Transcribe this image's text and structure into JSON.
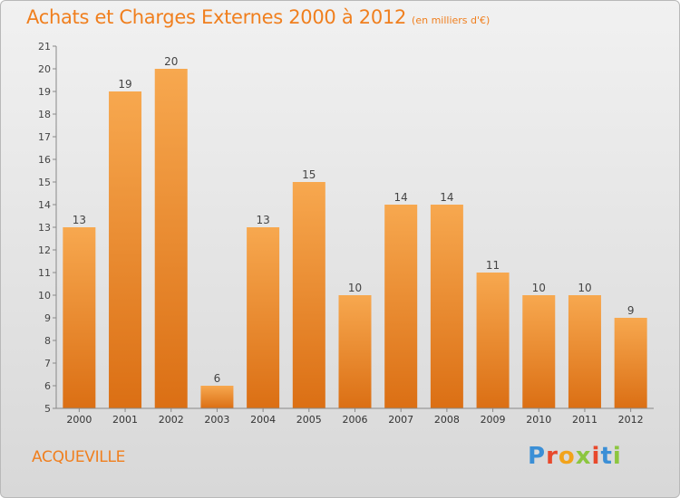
{
  "header": {
    "title": "Achats et Charges Externes 2000 à 2012",
    "subtitle": "(en milliers d'€)"
  },
  "commune": "ACQUEVILLE",
  "logo": {
    "letters": [
      "P",
      "r",
      "o",
      "x",
      "i",
      "t",
      "i"
    ],
    "colors": [
      "#3b8fd6",
      "#e8492c",
      "#f2a31b",
      "#8cc63f",
      "#e8492c",
      "#3b8fd6",
      "#8cc63f"
    ]
  },
  "colors": {
    "accent": "#f07f1e",
    "bar_top": "#f7a84f",
    "bar_bottom": "#db6f14"
  },
  "chart_data": {
    "type": "bar",
    "categories": [
      "2000",
      "2001",
      "2002",
      "2003",
      "2004",
      "2005",
      "2006",
      "2007",
      "2008",
      "2009",
      "2010",
      "2011",
      "2012"
    ],
    "values": [
      13,
      19,
      20,
      6,
      13,
      15,
      10,
      14,
      14,
      11,
      10,
      10,
      9
    ],
    "data_labels": [
      "13",
      "19",
      "20",
      "6",
      "13",
      "15",
      "10",
      "14",
      "14",
      "11",
      "10",
      "10",
      "9"
    ],
    "y_ticks": [
      "5",
      "6",
      "7",
      "8",
      "9",
      "10",
      "11",
      "12",
      "13",
      "14",
      "15",
      "16",
      "17",
      "18",
      "19",
      "20",
      "21"
    ],
    "ylim": [
      5,
      21
    ],
    "grid": false
  }
}
